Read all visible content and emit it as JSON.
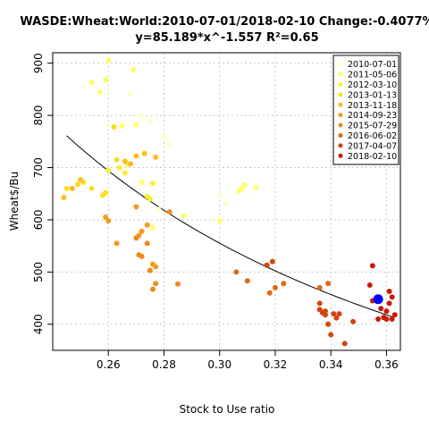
{
  "chart_data": {
    "type": "scatter",
    "title": "WASDE:Wheat:World:2010-07-01/2018-02-10 Change:-0.4077%",
    "subtitle": "y=85.189*x^-1.557 R²=0.65",
    "xlabel": "Stock to Use ratio",
    "ylabel": "Wheat$/Bu",
    "xlim": [
      0.24,
      0.365
    ],
    "ylim": [
      350,
      920
    ],
    "xticks": [
      0.26,
      0.28,
      0.3,
      0.32,
      0.34,
      0.36
    ],
    "xtick_labels": [
      "0.26",
      "0.28",
      "0.30",
      "0.32",
      "0.34",
      "0.36"
    ],
    "yticks": [
      400,
      500,
      600,
      700,
      800,
      900
    ],
    "ytick_labels": [
      "400",
      "500",
      "600",
      "700",
      "800",
      "900"
    ],
    "grid": true,
    "legend_position": "top-right",
    "fit": {
      "a": 85.189,
      "b": -1.557,
      "x_range": [
        0.245,
        0.362
      ],
      "color": "#000000"
    },
    "highlight": {
      "x": 0.357,
      "y": 448,
      "color": "#0000ff"
    },
    "series": [
      {
        "name": "2010-07-01",
        "color": "#ffffcc",
        "points": [
          [
            0.268,
            840
          ],
          [
            0.272,
            800
          ],
          [
            0.275,
            790
          ],
          [
            0.28,
            760
          ],
          [
            0.282,
            745
          ],
          [
            0.273,
            730
          ],
          [
            0.3,
            645
          ],
          [
            0.302,
            630
          ],
          [
            0.278,
            620
          ]
        ]
      },
      {
        "name": "2011-05-06",
        "color": "#ffff66",
        "points": [
          [
            0.26,
            905
          ],
          [
            0.254,
            863
          ],
          [
            0.269,
            888
          ],
          [
            0.259,
            868
          ],
          [
            0.257,
            845
          ],
          [
            0.265,
            780
          ],
          [
            0.27,
            782
          ],
          [
            0.272,
            672
          ],
          [
            0.287,
            608
          ],
          [
            0.3,
            598
          ],
          [
            0.308,
            660
          ],
          [
            0.309,
            667
          ],
          [
            0.313,
            662
          ],
          [
            0.307,
            655
          ],
          [
            0.276,
            585
          ]
        ]
      },
      {
        "name": "2012-03-10",
        "color": "#ffee33",
        "points": [
          [
            0.262,
            778
          ],
          [
            0.264,
            700
          ],
          [
            0.267,
            706
          ],
          [
            0.26,
            695
          ],
          [
            0.266,
            690
          ],
          [
            0.276,
            670
          ],
          [
            0.274,
            645
          ],
          [
            0.275,
            640
          ]
        ]
      },
      {
        "name": "2013-01-13",
        "color": "#ffdd22",
        "points": [
          [
            0.245,
            660
          ],
          [
            0.249,
            668
          ],
          [
            0.251,
            672
          ],
          [
            0.254,
            660
          ],
          [
            0.258,
            647
          ],
          [
            0.259,
            652
          ],
          [
            0.263,
            715
          ],
          [
            0.262,
            778
          ]
        ]
      },
      {
        "name": "2013-11-18",
        "color": "#ffbb22",
        "points": [
          [
            0.244,
            643
          ],
          [
            0.247,
            660
          ],
          [
            0.25,
            677
          ],
          [
            0.266,
            712
          ],
          [
            0.268,
            707
          ],
          [
            0.27,
            722
          ],
          [
            0.273,
            727
          ],
          [
            0.277,
            720
          ]
        ]
      },
      {
        "name": "2014-09-23",
        "color": "#f59b1a",
        "points": [
          [
            0.259,
            605
          ],
          [
            0.26,
            598
          ],
          [
            0.263,
            555
          ],
          [
            0.27,
            625
          ],
          [
            0.271,
            570
          ],
          [
            0.272,
            578
          ],
          [
            0.274,
            590
          ],
          [
            0.276,
            515
          ],
          [
            0.277,
            510
          ]
        ]
      },
      {
        "name": "2015-07-29",
        "color": "#ef8a1a",
        "points": [
          [
            0.27,
            565
          ],
          [
            0.271,
            533
          ],
          [
            0.272,
            530
          ],
          [
            0.274,
            555
          ],
          [
            0.275,
            503
          ],
          [
            0.276,
            467
          ],
          [
            0.277,
            478
          ],
          [
            0.285,
            477
          ],
          [
            0.282,
            615
          ]
        ]
      },
      {
        "name": "2016-06-02",
        "color": "#e06a14",
        "points": [
          [
            0.306,
            500
          ],
          [
            0.31,
            483
          ],
          [
            0.318,
            460
          ],
          [
            0.32,
            470
          ],
          [
            0.317,
            513
          ],
          [
            0.323,
            478
          ],
          [
            0.336,
            470
          ],
          [
            0.339,
            478
          ]
        ]
      },
      {
        "name": "2017-04-07",
        "color": "#d4440c",
        "points": [
          [
            0.317,
            513
          ],
          [
            0.319,
            520
          ],
          [
            0.336,
            428
          ],
          [
            0.337,
            422
          ],
          [
            0.338,
            425
          ],
          [
            0.336,
            440
          ],
          [
            0.339,
            400
          ],
          [
            0.338,
            418
          ],
          [
            0.34,
            380
          ],
          [
            0.341,
            420
          ],
          [
            0.342,
            412
          ],
          [
            0.345,
            363
          ],
          [
            0.343,
            420
          ],
          [
            0.348,
            405
          ]
        ]
      },
      {
        "name": "2018-02-10",
        "color": "#c91a0a",
        "points": [
          [
            0.355,
            512
          ],
          [
            0.354,
            475
          ],
          [
            0.358,
            430
          ],
          [
            0.36,
            425
          ],
          [
            0.361,
            463
          ],
          [
            0.362,
            452
          ],
          [
            0.36,
            410
          ],
          [
            0.362,
            410
          ],
          [
            0.363,
            418
          ],
          [
            0.361,
            440
          ],
          [
            0.357,
            410
          ],
          [
            0.355,
            445
          ],
          [
            0.359,
            413
          ]
        ]
      }
    ]
  }
}
